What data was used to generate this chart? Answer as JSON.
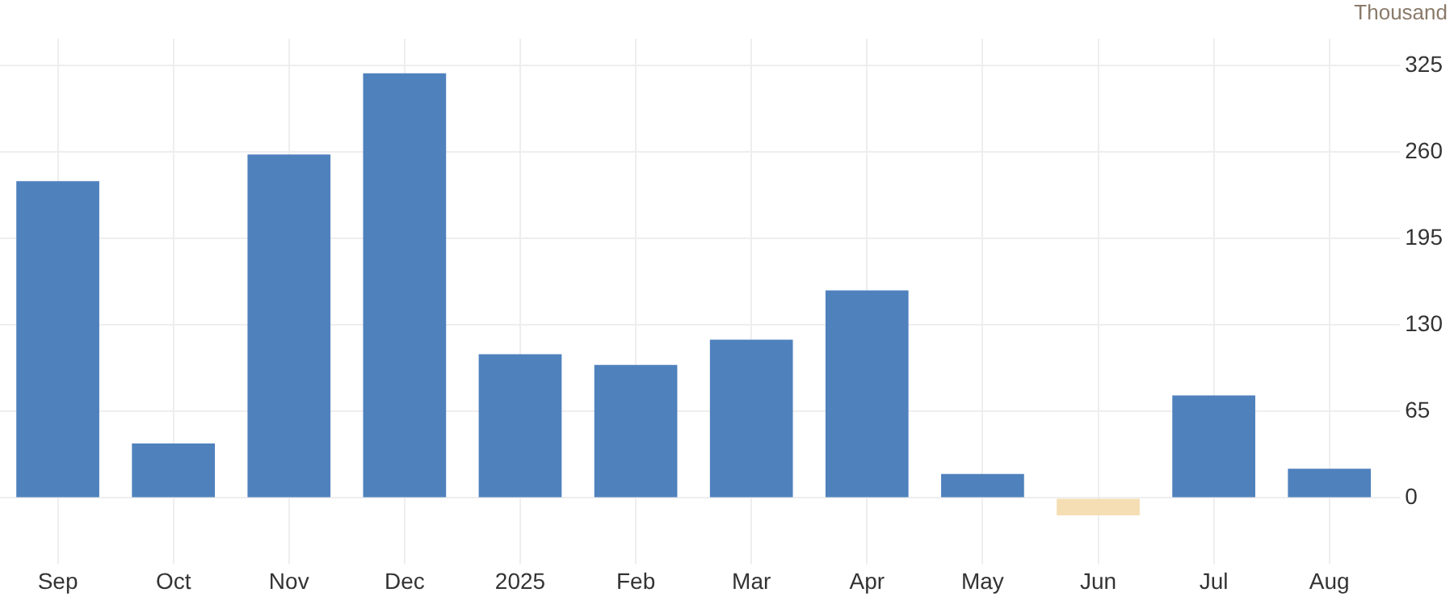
{
  "chart_data": {
    "type": "bar",
    "ylabel": "Thousand",
    "categories": [
      "Sep",
      "Oct",
      "Nov",
      "Dec",
      "2025",
      "Feb",
      "Mar",
      "Apr",
      "May",
      "Jun",
      "Jul",
      "Aug"
    ],
    "values": [
      238,
      41,
      258,
      319,
      108,
      100,
      119,
      156,
      18,
      -13,
      77,
      22
    ],
    "colors": [
      "#4f81bd",
      "#4f81bd",
      "#4f81bd",
      "#4f81bd",
      "#4f81bd",
      "#4f81bd",
      "#4f81bd",
      "#4f81bd",
      "#4f81bd",
      "#f5deb3",
      "#4f81bd",
      "#4f81bd"
    ],
    "ylim": [
      -40,
      345
    ],
    "yticks": [
      0,
      65,
      130,
      195,
      260,
      325
    ],
    "grid": true,
    "legend": false
  }
}
